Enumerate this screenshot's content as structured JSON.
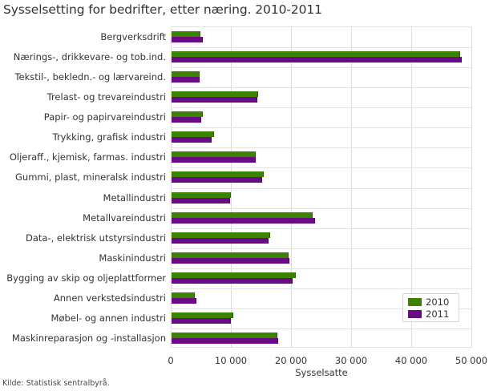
{
  "title": "Sysselsetting for bedrifter, etter næring. 2010-2011",
  "source": "Kilde: Statistisk sentralbyrå.",
  "colors": {
    "2010": "#3a8200",
    "2011": "#6a0a85"
  },
  "legend": [
    {
      "label": "2010"
    },
    {
      "label": "2011"
    }
  ],
  "axis": {
    "xlabel": "Sysselsatte",
    "ticks": [
      "0",
      "10 000",
      "20 000",
      "30 000",
      "40 000",
      "50 000"
    ],
    "tick_values": [
      0,
      10000,
      20000,
      30000,
      40000,
      50000
    ]
  },
  "chart_data": {
    "type": "bar",
    "orientation": "horizontal",
    "title": "Sysselsetting for bedrifter, etter næring. 2010-2011",
    "xlabel": "Sysselsatte",
    "ylabel": "",
    "xlim": [
      0,
      50000
    ],
    "grid": true,
    "legend_position": "inside-lower-right",
    "categories": [
      "Bergverksdrift",
      "Nærings-, drikkevare- og tob.ind.",
      "Tekstil-, bekledn.- og lærvareind.",
      "Trelast- og trevareindustri",
      "Papir- og papirvareindustri",
      "Trykking, grafisk industri",
      "Oljeraff., kjemisk, farmas. industri",
      "Gummi, plast, mineralsk industri",
      "Metallindustri",
      "Metallvareindustri",
      "Data-, elektrisk utstyrsindustri",
      "Maskinindustri",
      "Bygging av skip og oljeplattformer",
      "Annen verkstedsindustri",
      "Møbel- og annen industri",
      "Maskinreparasjon og -installasjon"
    ],
    "series": [
      {
        "name": "2010",
        "values": [
          4800,
          48000,
          4600,
          14400,
          5200,
          7000,
          14000,
          15300,
          9900,
          23500,
          16400,
          19500,
          20700,
          3900,
          10300,
          17600
        ]
      },
      {
        "name": "2011",
        "values": [
          5200,
          48300,
          4600,
          14300,
          4900,
          6700,
          14000,
          15100,
          9700,
          23800,
          16100,
          19600,
          20100,
          4100,
          9900,
          17700
        ]
      }
    ]
  }
}
